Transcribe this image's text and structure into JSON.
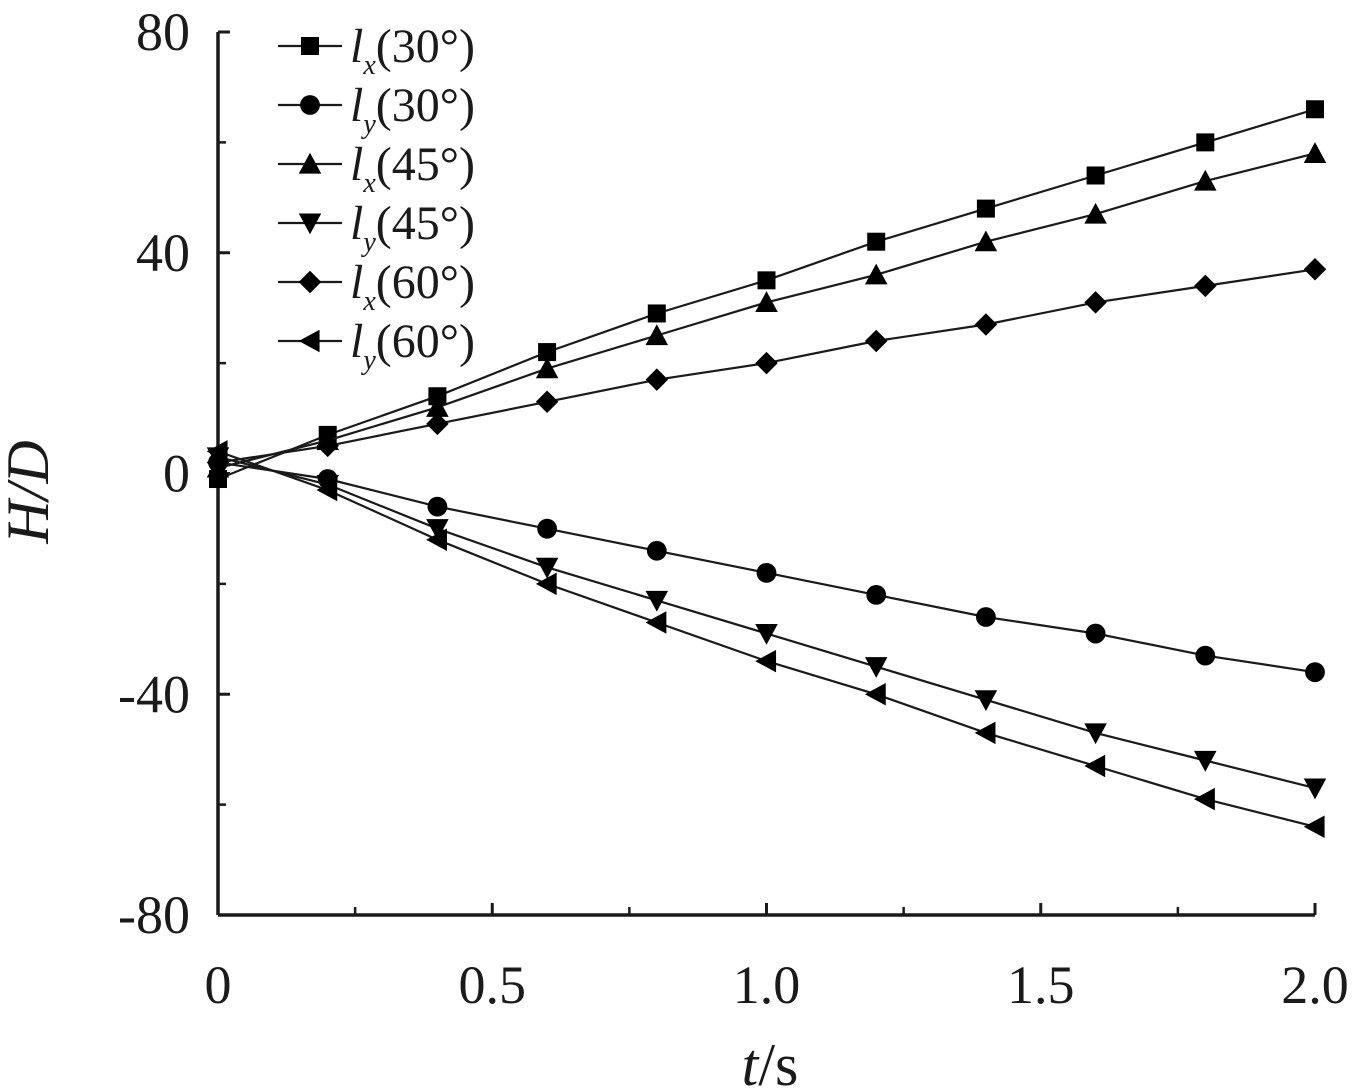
{
  "chart_data": {
    "type": "line",
    "xlabel": {
      "var": "t",
      "unit": "/s"
    },
    "ylabel": "H/D",
    "xlim": [
      0,
      2.0
    ],
    "ylim": [
      -80,
      80
    ],
    "x_ticks": [
      0,
      0.5,
      1.0,
      1.5,
      2.0
    ],
    "x_tick_labels": [
      "0",
      "0.5",
      "1.0",
      "1.5",
      "2.0"
    ],
    "y_ticks": [
      80,
      40,
      0,
      -40,
      -80
    ],
    "y_tick_labels": [
      "80",
      "40",
      "0",
      "-40",
      "-80"
    ],
    "grid": false,
    "legend_position": "top-left",
    "x": [
      0,
      0.2,
      0.4,
      0.6,
      0.8,
      1.0,
      1.2,
      1.4,
      1.6,
      1.8,
      2.0
    ],
    "series": [
      {
        "name": "l_x(30°)",
        "var": "l",
        "sub": "x",
        "angle": "(30°)",
        "marker": "square",
        "values": [
          -1,
          7,
          14,
          22,
          29,
          35,
          42,
          48,
          54,
          60,
          66
        ]
      },
      {
        "name": "l_y(30°)",
        "var": "l",
        "sub": "y",
        "angle": "(30°)",
        "marker": "circle",
        "values": [
          2,
          -1,
          -6,
          -10,
          -14,
          -18,
          -22,
          -26,
          -29,
          -33,
          -36
        ]
      },
      {
        "name": "l_x(45°)",
        "var": "l",
        "sub": "x",
        "angle": "(45°)",
        "marker": "triangle-up",
        "values": [
          1,
          6,
          12,
          19,
          25,
          31,
          36,
          42,
          47,
          53,
          58
        ]
      },
      {
        "name": "l_y(45°)",
        "var": "l",
        "sub": "y",
        "angle": "(45°)",
        "marker": "triangle-down",
        "values": [
          3,
          -2,
          -10,
          -17,
          -23,
          -29,
          -35,
          -41,
          -47,
          -52,
          -57
        ]
      },
      {
        "name": "l_x(60°)",
        "var": "l",
        "sub": "x",
        "angle": "(60°)",
        "marker": "diamond",
        "values": [
          2,
          5,
          9,
          13,
          17,
          20,
          24,
          27,
          31,
          34,
          37
        ]
      },
      {
        "name": "l_y(60°)",
        "var": "l",
        "sub": "y",
        "angle": "(60°)",
        "marker": "triangle-left",
        "values": [
          4,
          -3,
          -12,
          -20,
          -27,
          -34,
          -40,
          -47,
          -53,
          -59,
          -64
        ]
      }
    ],
    "colors": {
      "line": "#1a1a1a",
      "marker": "#000000",
      "axis": "#1a1a1a",
      "background": "#ffffff"
    }
  }
}
